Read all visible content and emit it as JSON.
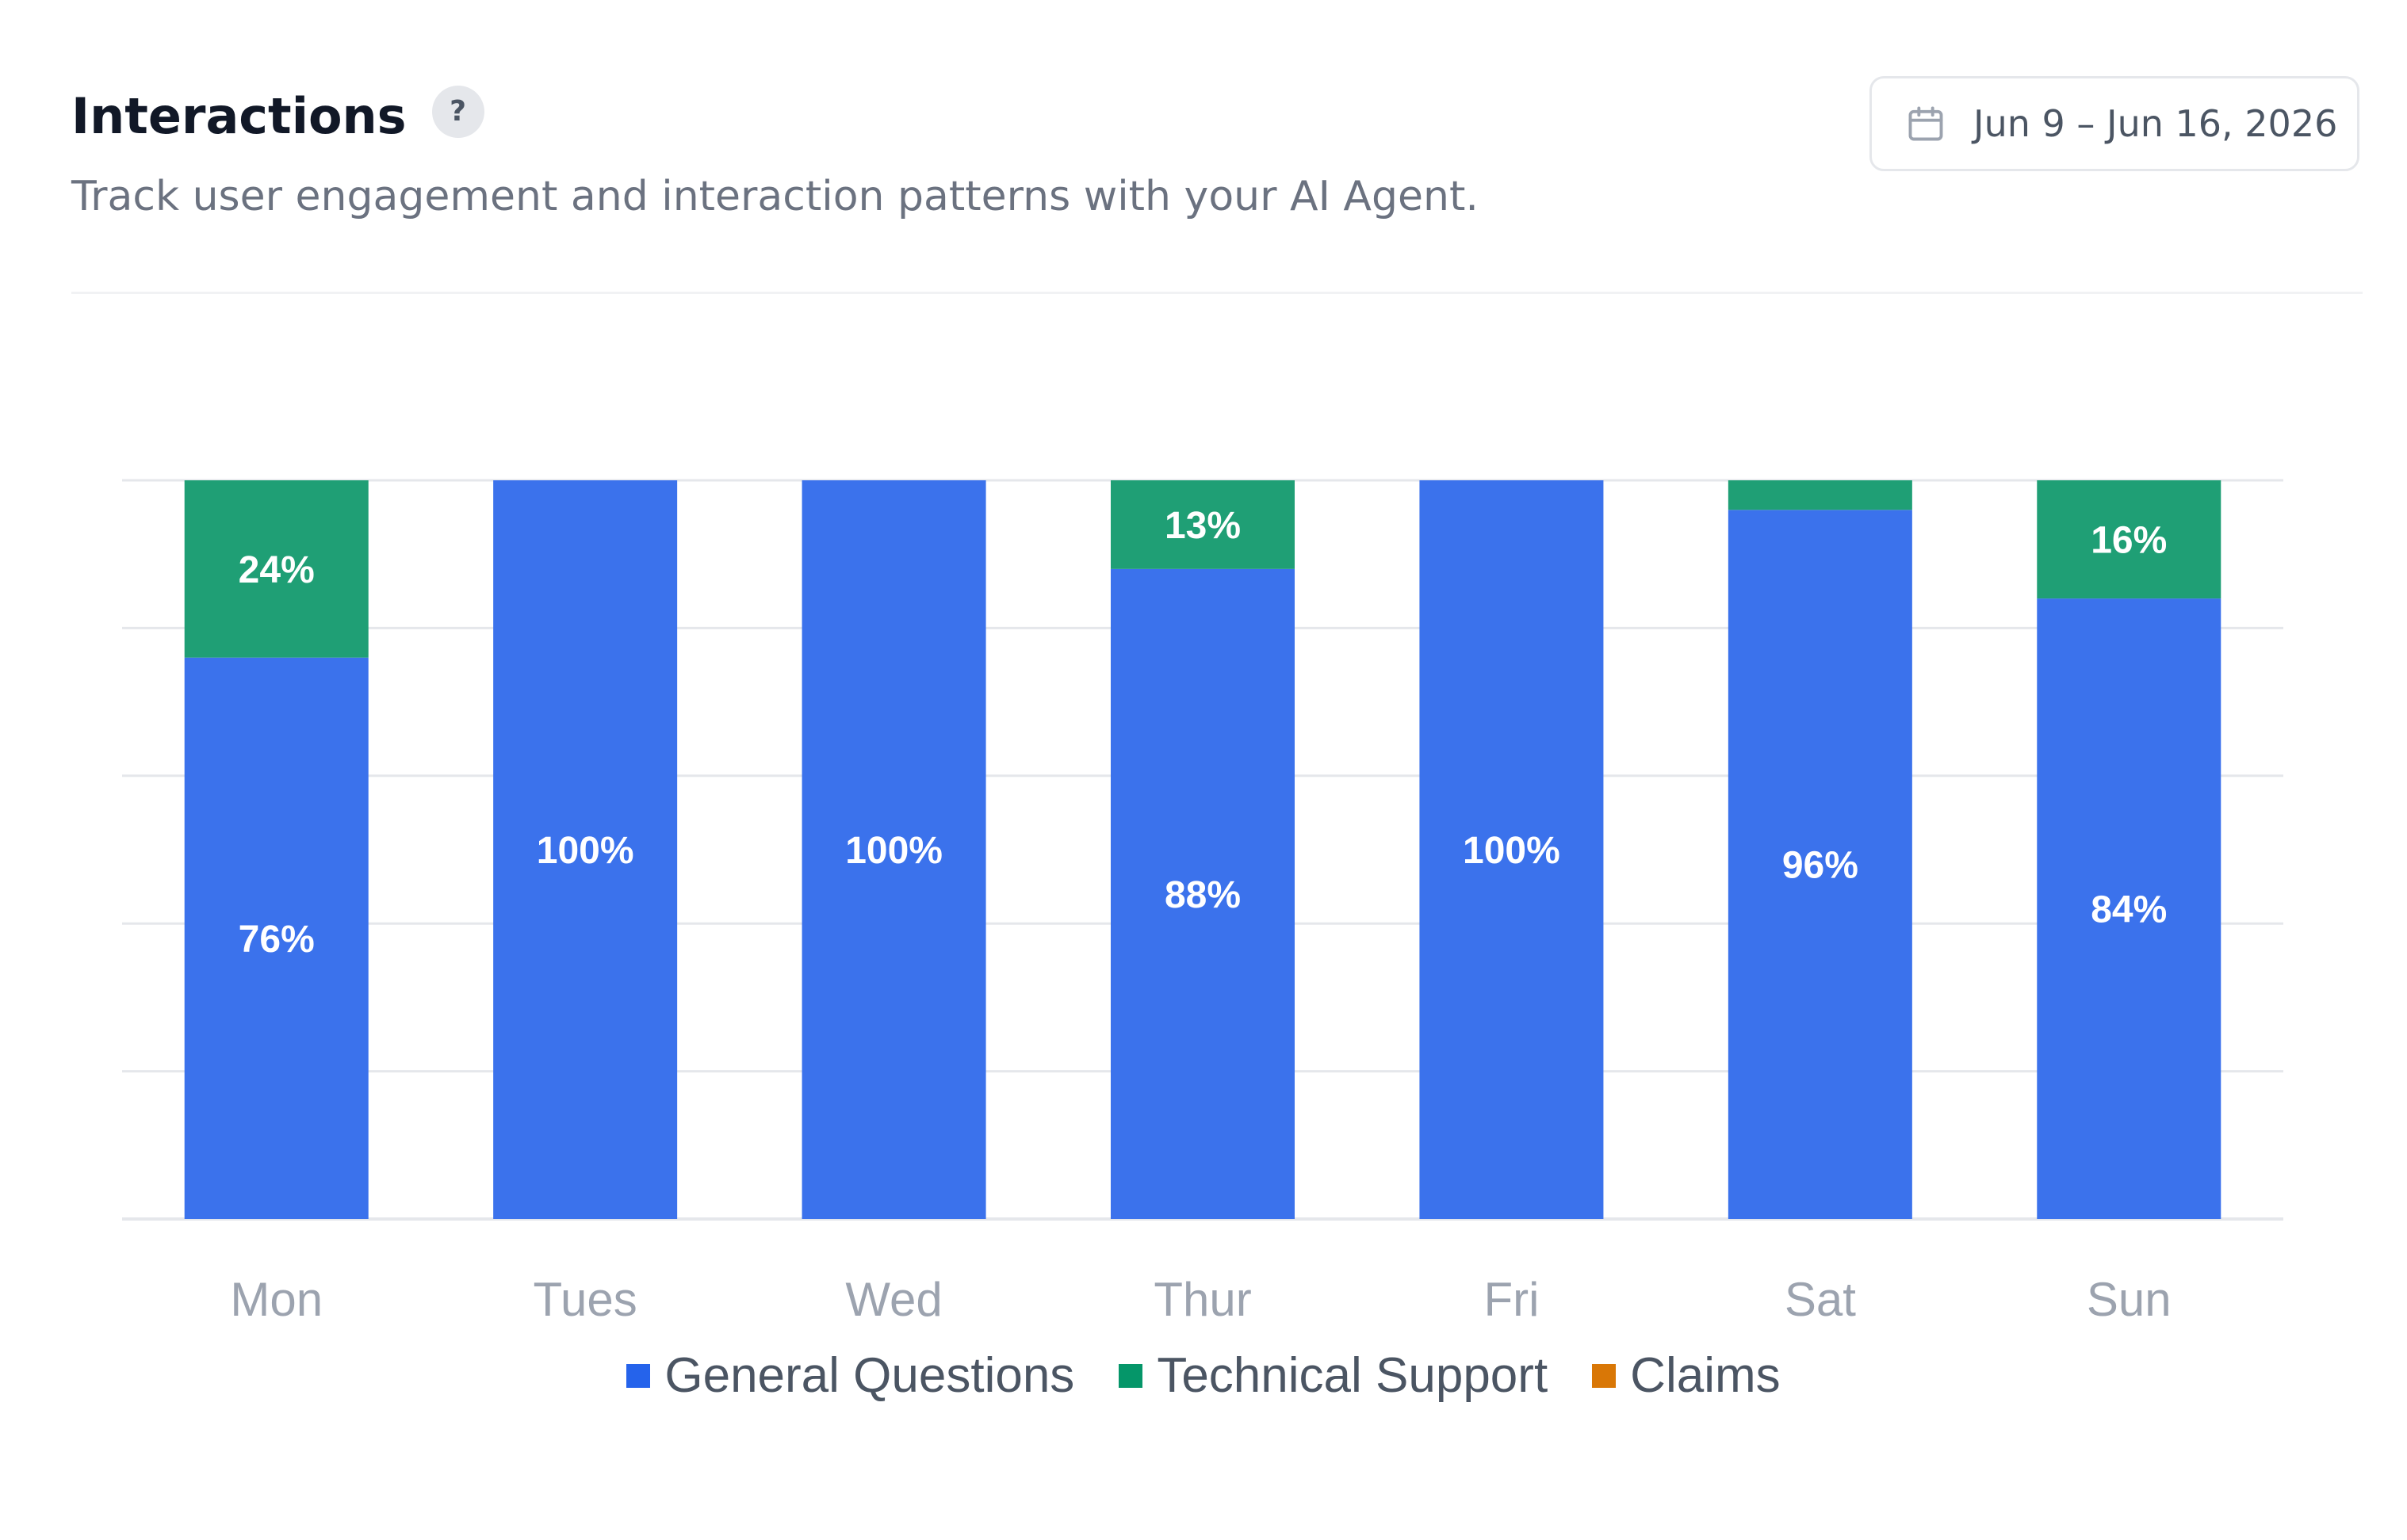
{
  "header": {
    "title": "Interactions",
    "help_icon_label": "?",
    "subtitle": "Track user engagement and interaction patterns with your AI Agent.",
    "date_range": "Jun 9 – Jun 16, 2026",
    "date_icon": "calendar-icon"
  },
  "colors": {
    "general": "#3b72ec",
    "technical": "#1f9f75",
    "claims": "#e07b0f",
    "legend_general": "#2563eb",
    "legend_technical": "#059669",
    "legend_claims": "#d97706",
    "grid": "#e5e7eb",
    "axis_text": "#9ca3af"
  },
  "chart_data": {
    "type": "bar",
    "stacked": true,
    "categories": [
      "Mon",
      "Tues",
      "Wed",
      "Thur",
      "Fri",
      "Sat",
      "Sun"
    ],
    "series": [
      {
        "name": "General Questions",
        "values": [
          76,
          100,
          100,
          88,
          100,
          96,
          84
        ],
        "labels": [
          "76%",
          "100%",
          "100%",
          "88%",
          "100%",
          "96%",
          "84%"
        ]
      },
      {
        "name": "Technical Support",
        "values": [
          24,
          0,
          0,
          13,
          0,
          4,
          16
        ],
        "labels": [
          "24%",
          "",
          "",
          "13%",
          "",
          "",
          "16%"
        ]
      },
      {
        "name": "Claims",
        "values": [
          0,
          0,
          0,
          0,
          0,
          0,
          0
        ],
        "labels": [
          "",
          "",
          "",
          "",
          "",
          "",
          ""
        ]
      }
    ],
    "ylim": [
      0,
      100
    ],
    "grid": true,
    "legend_position": "bottom"
  }
}
